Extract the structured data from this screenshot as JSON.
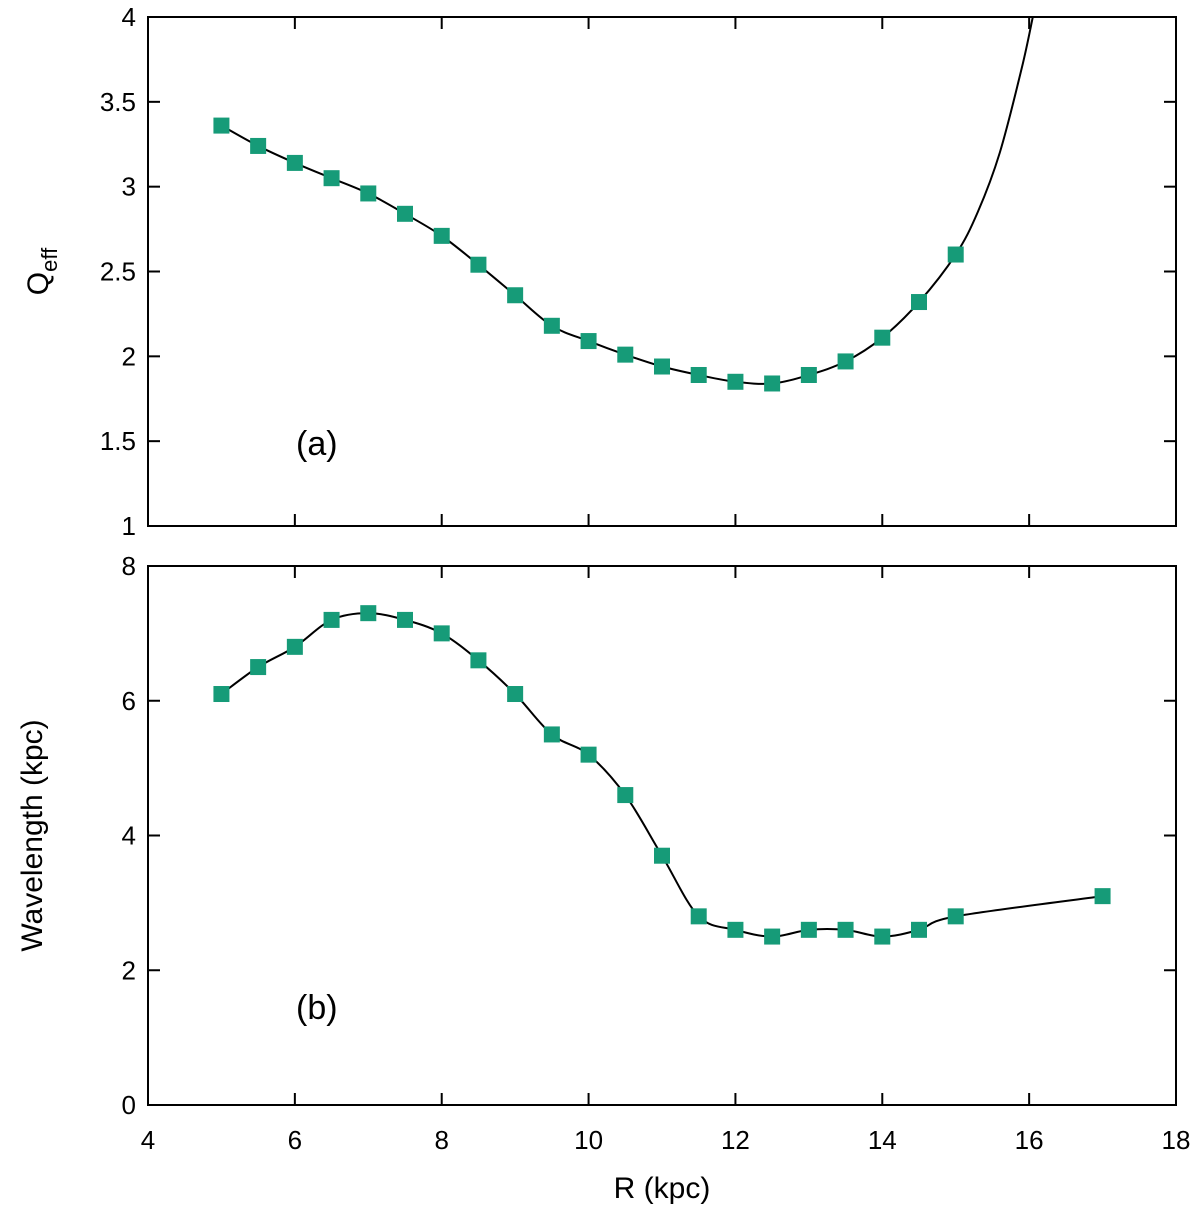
{
  "chart_data": [
    {
      "type": "line",
      "panel_label": "(a)",
      "ylabel_main": "Q",
      "ylabel_sub": "eff",
      "xlim": [
        4,
        18
      ],
      "ylim": [
        1,
        4
      ],
      "xticks": [
        4,
        6,
        8,
        10,
        12,
        14,
        16,
        18
      ],
      "yticks": [
        1,
        1.5,
        2,
        2.5,
        3,
        3.5,
        4
      ],
      "ytick_labels": [
        "1",
        "1.5",
        "2",
        "2.5",
        "3",
        "3.5",
        "4"
      ],
      "marker_color": "#169b78",
      "line_color": "#000000",
      "series": [
        {
          "name": "Qeff points",
          "x": [
            5,
            5.5,
            6,
            6.5,
            7,
            7.5,
            8,
            8.5,
            9,
            9.5,
            10,
            10.5,
            11,
            11.5,
            12,
            12.5,
            13,
            13.5,
            14,
            14.5,
            15
          ],
          "y": [
            3.36,
            3.24,
            3.14,
            3.05,
            2.96,
            2.84,
            2.71,
            2.54,
            2.36,
            2.18,
            2.09,
            2.01,
            1.94,
            1.89,
            1.85,
            1.84,
            1.89,
            1.97,
            2.11,
            2.32,
            2.6
          ]
        }
      ],
      "curve_extension": {
        "x": [
          15.3,
          15.6,
          15.9,
          16.05
        ],
        "y": [
          2.85,
          3.2,
          3.7,
          4.0
        ]
      }
    },
    {
      "type": "line",
      "panel_label": "(b)",
      "ylabel": "Wavelength (kpc)",
      "xlabel": "R (kpc)",
      "xlim": [
        4,
        18
      ],
      "ylim": [
        0,
        8
      ],
      "xticks": [
        4,
        6,
        8,
        10,
        12,
        14,
        16,
        18
      ],
      "xtick_labels": [
        "4",
        "6",
        "8",
        "10",
        "12",
        "14",
        "16",
        "18"
      ],
      "yticks": [
        0,
        2,
        4,
        6,
        8
      ],
      "ytick_labels": [
        "0",
        "2",
        "4",
        "6",
        "8"
      ],
      "marker_color": "#169b78",
      "line_color": "#000000",
      "series": [
        {
          "name": "Wavelength points",
          "x": [
            5,
            5.5,
            6,
            6.5,
            7,
            7.5,
            8,
            8.5,
            9,
            9.5,
            10,
            10.5,
            11,
            11.5,
            12,
            12.5,
            13,
            13.5,
            14,
            14.5,
            15,
            17
          ],
          "y": [
            6.1,
            6.5,
            6.8,
            7.2,
            7.3,
            7.2,
            7.0,
            6.6,
            6.1,
            5.5,
            5.2,
            4.6,
            3.7,
            2.8,
            2.6,
            2.5,
            2.6,
            2.6,
            2.5,
            2.6,
            2.8,
            3.1
          ]
        }
      ]
    }
  ]
}
